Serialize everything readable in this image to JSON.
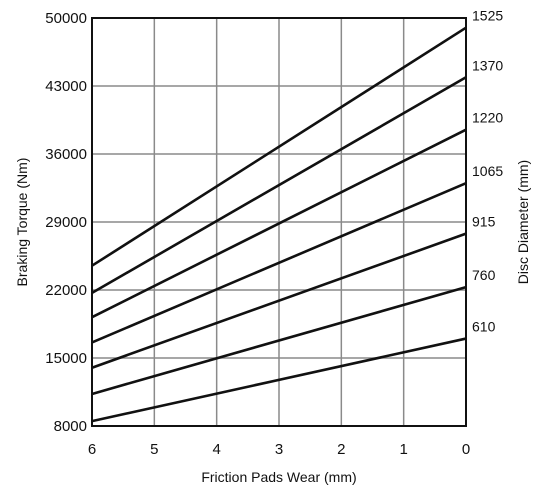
{
  "chart_data": {
    "type": "line",
    "xlabel": "Friction Pads Wear (mm)",
    "ylabel": "Braking Torque (Nm)",
    "right_label": "Disc Diameter (mm)",
    "x_ticks": [
      6,
      5,
      4,
      3,
      2,
      1,
      0
    ],
    "x_reversed": true,
    "xlim": [
      0,
      6
    ],
    "y_ticks": [
      8000,
      15000,
      22000,
      29000,
      36000,
      43000,
      50000
    ],
    "ylim": [
      8000,
      50000
    ],
    "grid": true,
    "series": [
      {
        "name": "1525",
        "x": [
          6,
          0
        ],
        "y": [
          24500,
          49000
        ]
      },
      {
        "name": "1370",
        "x": [
          6,
          0
        ],
        "y": [
          21700,
          43900
        ]
      },
      {
        "name": "1220",
        "x": [
          6,
          0
        ],
        "y": [
          19200,
          38500
        ]
      },
      {
        "name": "1065",
        "x": [
          6,
          0
        ],
        "y": [
          16600,
          33000
        ]
      },
      {
        "name": "915",
        "x": [
          6,
          0
        ],
        "y": [
          14000,
          27800
        ]
      },
      {
        "name": "760",
        "x": [
          6,
          0
        ],
        "y": [
          11300,
          22300
        ]
      },
      {
        "name": "610",
        "x": [
          6,
          0
        ],
        "y": [
          8500,
          17000
        ]
      }
    ]
  },
  "colors": {
    "line": "#111111",
    "grid": "#8a8a8a",
    "frame": "#111111"
  }
}
